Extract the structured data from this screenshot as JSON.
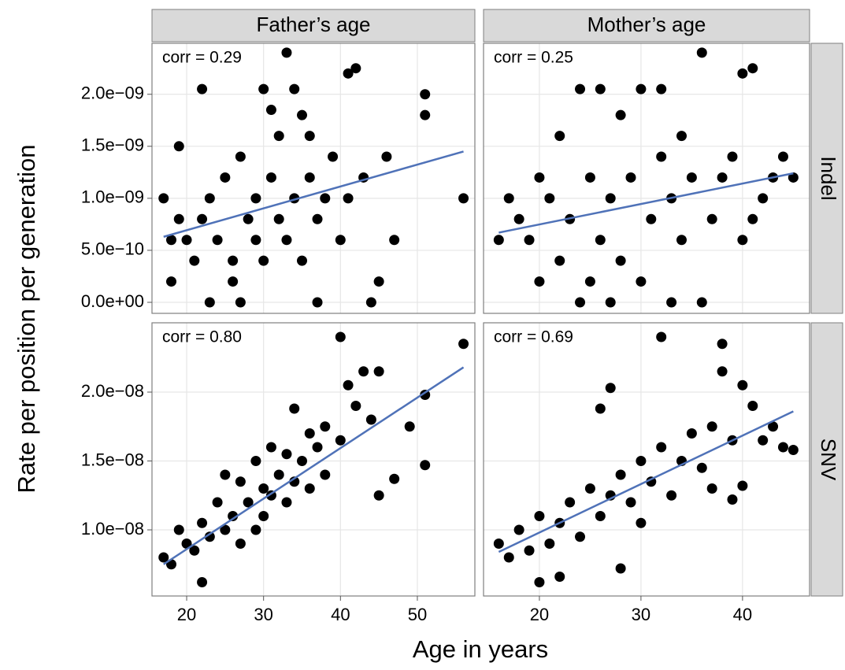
{
  "facets": {
    "xlabel": "Age in years",
    "ylabel": "Rate per position per generation",
    "columns": [
      {
        "label": "Father’s age",
        "xlim": [
          15.49,
          57.48
        ],
        "xticks": [
          20,
          30,
          40,
          50
        ]
      },
      {
        "label": "Mother’s age",
        "xlim": [
          14.5,
          46.6
        ],
        "xticks": [
          20,
          30,
          40
        ]
      }
    ],
    "rows": [
      {
        "label": "Indel",
        "ylim": [
          -1.06e-10,
          2.49e-09
        ],
        "yticks": [
          {
            "value": 0,
            "label": "0.0e+00"
          },
          {
            "value": 5e-10,
            "label": "5.0e−10"
          },
          {
            "value": 1e-09,
            "label": "1.0e−09"
          },
          {
            "value": 1.5e-09,
            "label": "1.5e−09"
          },
          {
            "value": 2e-09,
            "label": "2.0e−09"
          }
        ]
      },
      {
        "label": "SNV",
        "ylim": [
          5.2e-09,
          2.503e-08
        ],
        "yticks": [
          {
            "value": 1e-08,
            "label": "1.0e−08"
          },
          {
            "value": 1.5e-08,
            "label": "1.5e−08"
          },
          {
            "value": 2e-08,
            "label": "2.0e−08"
          }
        ]
      }
    ],
    "grid": true
  },
  "chart_data": [
    {
      "type": "scatter",
      "annotation": "corr = 0.29",
      "color": "#000000",
      "trend_color": "#4f72b8",
      "x": [
        17,
        18,
        18,
        19,
        19,
        20,
        21,
        22,
        22,
        23,
        23,
        24,
        25,
        26,
        26,
        27,
        27,
        28,
        29,
        29,
        30,
        30,
        31,
        31,
        32,
        32,
        33,
        33,
        34,
        34,
        35,
        35,
        36,
        36,
        37,
        37,
        38,
        39,
        40,
        41,
        41,
        42,
        43,
        44,
        45,
        46,
        47,
        51,
        51,
        56
      ],
      "y": [
        1e-09,
        2e-10,
        6e-10,
        1.5e-09,
        8e-10,
        6e-10,
        4e-10,
        2.05e-09,
        8e-10,
        0,
        1e-09,
        6e-10,
        1.2e-09,
        4e-10,
        2e-10,
        0,
        1.4e-09,
        8e-10,
        6e-10,
        1e-09,
        2.05e-09,
        4e-10,
        1.85e-09,
        1.2e-09,
        8e-10,
        1.6e-09,
        2.4e-09,
        6e-10,
        2.05e-09,
        1e-09,
        1.8e-09,
        4e-10,
        1.6e-09,
        1.2e-09,
        0,
        8e-10,
        1e-09,
        1.4e-09,
        6e-10,
        2.2e-09,
        1e-09,
        2.25e-09,
        1.2e-09,
        0,
        2e-10,
        1.4e-09,
        6e-10,
        2e-09,
        1.8e-09,
        1e-09
      ],
      "trend": {
        "x": [
          17,
          56
        ],
        "y": [
          6.3e-10,
          1.45e-09
        ]
      }
    },
    {
      "type": "scatter",
      "annotation": "corr = 0.25",
      "color": "#000000",
      "trend_color": "#4f72b8",
      "x": [
        16,
        17,
        18,
        19,
        20,
        20,
        21,
        22,
        22,
        23,
        24,
        24,
        25,
        25,
        26,
        26,
        27,
        27,
        28,
        28,
        29,
        30,
        30,
        31,
        32,
        32,
        33,
        33,
        34,
        34,
        35,
        36,
        36,
        37,
        38,
        39,
        40,
        40,
        41,
        41,
        42,
        43,
        44,
        45
      ],
      "y": [
        6e-10,
        1e-09,
        8e-10,
        6e-10,
        1.2e-09,
        2e-10,
        1e-09,
        1.6e-09,
        4e-10,
        8e-10,
        2.05e-09,
        0,
        1.2e-09,
        2e-10,
        2.05e-09,
        6e-10,
        1e-09,
        0,
        1.8e-09,
        4e-10,
        1.2e-09,
        2.05e-09,
        2e-10,
        8e-10,
        2.05e-09,
        1.4e-09,
        1e-09,
        0,
        1.6e-09,
        6e-10,
        1.2e-09,
        2.4e-09,
        0,
        8e-10,
        1.2e-09,
        1.4e-09,
        2.2e-09,
        6e-10,
        2.25e-09,
        8e-10,
        1e-09,
        1.2e-09,
        1.4e-09,
        1.2e-09
      ],
      "trend": {
        "x": [
          16,
          45
        ],
        "y": [
          6.7e-10,
          1.24e-09
        ]
      }
    },
    {
      "type": "scatter",
      "annotation": "corr = 0.80",
      "color": "#000000",
      "trend_color": "#4f72b8",
      "x": [
        17,
        18,
        19,
        20,
        21,
        22,
        22,
        23,
        24,
        25,
        25,
        26,
        27,
        27,
        28,
        29,
        29,
        30,
        30,
        31,
        31,
        32,
        33,
        33,
        34,
        34,
        35,
        36,
        36,
        37,
        38,
        38,
        40,
        40,
        41,
        42,
        43,
        44,
        45,
        45,
        47,
        49,
        51,
        51,
        56
      ],
      "y": [
        8e-09,
        7.5e-09,
        1e-08,
        9e-09,
        8.5e-09,
        6.2e-09,
        1.05e-08,
        9.5e-09,
        1.2e-08,
        1e-08,
        1.4e-08,
        1.1e-08,
        9e-09,
        1.35e-08,
        1.2e-08,
        1e-08,
        1.5e-08,
        1.3e-08,
        1.1e-08,
        1.6e-08,
        1.25e-08,
        1.4e-08,
        1.55e-08,
        1.2e-08,
        1.88e-08,
        1.35e-08,
        1.5e-08,
        1.7e-08,
        1.3e-08,
        1.6e-08,
        1.75e-08,
        1.4e-08,
        2.4e-08,
        1.65e-08,
        2.05e-08,
        1.9e-08,
        2.15e-08,
        1.8e-08,
        1.25e-08,
        2.15e-08,
        1.37e-08,
        1.75e-08,
        1.47e-08,
        1.98e-08,
        2.35e-08
      ],
      "trend": {
        "x": [
          17,
          56
        ],
        "y": [
          7.5e-09,
          2.18e-08
        ]
      }
    },
    {
      "type": "scatter",
      "annotation": "corr = 0.69",
      "color": "#000000",
      "trend_color": "#4f72b8",
      "x": [
        16,
        17,
        18,
        19,
        20,
        20,
        21,
        22,
        22,
        23,
        24,
        25,
        26,
        26,
        27,
        27,
        28,
        28,
        29,
        30,
        30,
        31,
        32,
        32,
        33,
        34,
        35,
        36,
        37,
        37,
        38,
        38,
        39,
        39,
        40,
        40,
        41,
        42,
        43,
        44,
        45
      ],
      "y": [
        9e-09,
        8e-09,
        1e-08,
        8.5e-09,
        6.2e-09,
        1.1e-08,
        9e-09,
        1.05e-08,
        6.6e-09,
        1.2e-08,
        9.5e-09,
        1.3e-08,
        1.88e-08,
        1.1e-08,
        2.03e-08,
        1.25e-08,
        7.2e-09,
        1.4e-08,
        1.2e-08,
        1.5e-08,
        1.05e-08,
        1.35e-08,
        2.4e-08,
        1.6e-08,
        1.25e-08,
        1.5e-08,
        1.7e-08,
        1.45e-08,
        1.3e-08,
        1.75e-08,
        2.35e-08,
        2.15e-08,
        1.65e-08,
        1.22e-08,
        2.05e-08,
        1.32e-08,
        1.9e-08,
        1.65e-08,
        1.75e-08,
        1.6e-08,
        1.58e-08
      ],
      "trend": {
        "x": [
          16,
          45
        ],
        "y": [
          8.4e-09,
          1.86e-08
        ]
      }
    }
  ]
}
